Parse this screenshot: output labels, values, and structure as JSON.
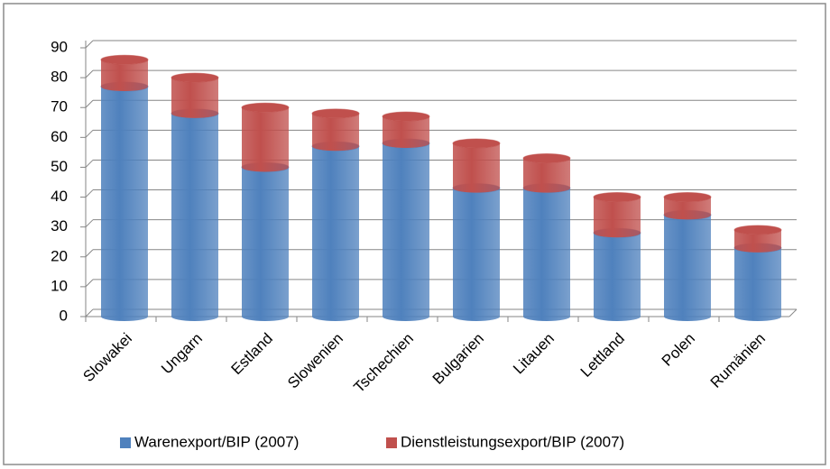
{
  "chart_data": {
    "type": "bar",
    "categories": [
      "Slowakei",
      "Ungarn",
      "Estland",
      "Slowenien",
      "Tschechien",
      "Bulgarien",
      "Litauen",
      "Lettland",
      "Polen",
      "Rumänien"
    ],
    "series": [
      {
        "name": "Warenexport/BIP (2007)",
        "color": "#4f81bd",
        "values": [
          77,
          68,
          50,
          57,
          58,
          43,
          43,
          28,
          34,
          23
        ]
      },
      {
        "name": "Dienstleistungsexport/BIP (2007)",
        "color": "#c0504d",
        "values": [
          9,
          12,
          20,
          11,
          9,
          15,
          10,
          12,
          6,
          6
        ]
      }
    ],
    "stacked": true,
    "ylim": [
      0,
      90
    ],
    "yticks": [
      0,
      10,
      20,
      30,
      40,
      50,
      60,
      70,
      80,
      90
    ],
    "grid": true,
    "legend": "bottom"
  }
}
